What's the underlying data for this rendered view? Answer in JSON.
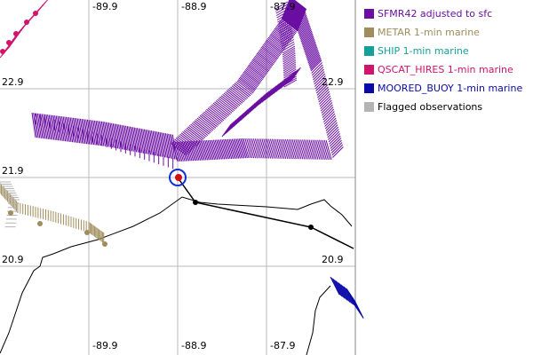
{
  "map": {
    "longitude_labels_top": [
      "-89.9",
      "-88.9",
      "-87.9"
    ],
    "longitude_labels_bottom": [
      "-89.9",
      "-88.9",
      "-87.9"
    ],
    "latitude_labels_left": [
      "22.9",
      "21.9",
      "20.9"
    ],
    "latitude_labels_right": [
      "22.9",
      "20.9"
    ]
  },
  "legend": {
    "items": [
      {
        "label": "SFMR42 adjusted to sfc",
        "color": "#6b0fa3"
      },
      {
        "label": "METAR 1-min marine",
        "color": "#a08c5c"
      },
      {
        "label": "SHIP 1-min marine",
        "color": "#14a09a"
      },
      {
        "label": "QSCAT_HIRES 1-min marine",
        "color": "#d0146c"
      },
      {
        "label": "MOORED_BUOY 1-min marine",
        "color": "#0a0aa8"
      },
      {
        "label": "Flagged observations",
        "color": "#b4b4b4"
      }
    ]
  }
}
